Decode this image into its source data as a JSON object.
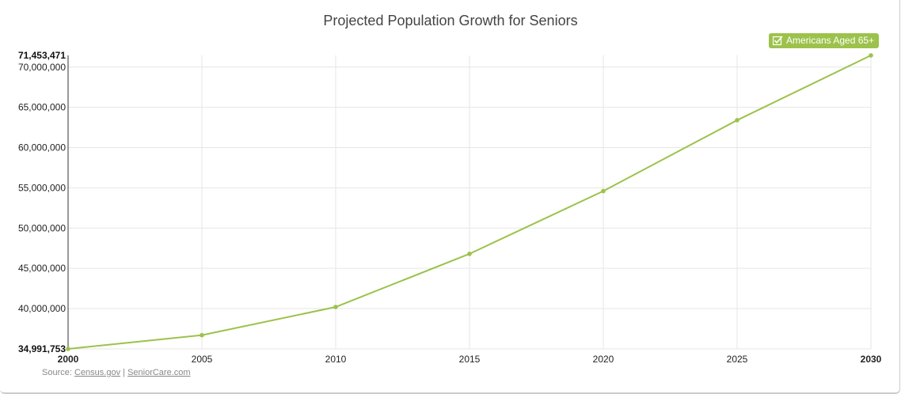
{
  "chart_data": {
    "type": "line",
    "title": "Projected Population Growth for Seniors",
    "xlabel": "",
    "ylabel": "",
    "x": [
      2000,
      2005,
      2010,
      2015,
      2020,
      2025,
      2030
    ],
    "x_tick_labels": [
      "2000",
      "2005",
      "2010",
      "2015",
      "2020",
      "2025",
      "2030"
    ],
    "series": [
      {
        "name": "Americans Aged 65+",
        "color": "#9cc24b",
        "values": [
          34991753,
          36700000,
          40200000,
          46800000,
          54600000,
          63400000,
          71453471
        ]
      }
    ],
    "ylim": [
      34991753,
      71453471
    ],
    "y_min_label": "34,991,753",
    "y_max_label": "71,453,471",
    "y_ticks": [
      40000000,
      45000000,
      50000000,
      55000000,
      60000000,
      65000000,
      70000000
    ],
    "y_tick_labels": [
      "40,000,000",
      "45,000,000",
      "50,000,000",
      "55,000,000",
      "60,000,000",
      "65,000,000",
      "70,000,000"
    ],
    "grid": true,
    "legend_position": "top-right"
  },
  "legend": {
    "label": "Americans Aged 65+",
    "checked": true
  },
  "source": {
    "prefix": "Source:",
    "link1": "Census.gov",
    "separator": "|",
    "link2": "SeniorCare.com"
  }
}
